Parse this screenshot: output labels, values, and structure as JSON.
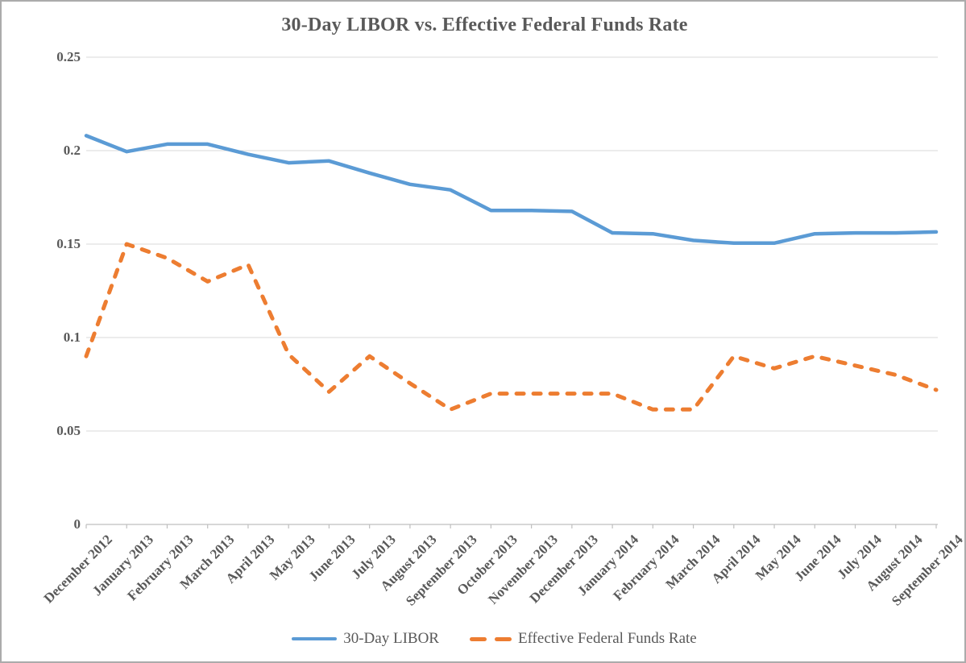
{
  "title": "30-Day LIBOR vs. Effective Federal Funds Rate",
  "colors": {
    "libor_blue": "#5B9BD5",
    "effr_orange": "#ED7D31",
    "gridline": "#D9D9D9",
    "axis": "#BFBFBF",
    "text": "#595959"
  },
  "chart_data": {
    "type": "line",
    "title": "30-Day LIBOR vs. Effective Federal Funds Rate",
    "xlabel": "",
    "ylabel": "",
    "ylim": [
      0,
      0.25
    ],
    "grid": true,
    "legend_position": "bottom",
    "yticks": [
      {
        "value": 0.25,
        "label": "0.25"
      },
      {
        "value": 0.2,
        "label": "0.2"
      },
      {
        "value": 0.15,
        "label": "0.15"
      },
      {
        "value": 0.1,
        "label": "0.1"
      },
      {
        "value": 0.05,
        "label": "0.05"
      },
      {
        "value": 0,
        "label": "0"
      }
    ],
    "categories": [
      "December 2012",
      "January 2013",
      "February 2013",
      "March 2013",
      "April 2013",
      "May 2013",
      "June 2013",
      "July 2013",
      "August 2013",
      "September 2013",
      "October 2013",
      "November 2013",
      "December 2013",
      "January 2014",
      "February 2014",
      "March 2014",
      "April 2014",
      "May 2014",
      "June 2014",
      "July 2014",
      "August 2014",
      "September 2014"
    ],
    "series": [
      {
        "name": "30-Day LIBOR",
        "style": "solid",
        "color": "#5B9BD5",
        "values": [
          0.208,
          0.1995,
          0.2035,
          0.2035,
          0.198,
          0.1935,
          0.1945,
          0.188,
          0.182,
          0.179,
          0.168,
          0.168,
          0.1675,
          0.156,
          0.1555,
          0.152,
          0.1505,
          0.1505,
          0.1555,
          0.156,
          0.156,
          0.1565
        ]
      },
      {
        "name": "Effective Federal Funds Rate",
        "style": "dashed",
        "color": "#ED7D31",
        "values": [
          0.09,
          0.15,
          0.1425,
          0.13,
          0.139,
          0.091,
          0.071,
          0.09,
          0.0755,
          0.0615,
          0.07,
          0.07,
          0.07,
          0.07,
          0.0615,
          0.0615,
          0.09,
          0.0835,
          0.09,
          0.085,
          0.08,
          0.072
        ]
      }
    ]
  }
}
